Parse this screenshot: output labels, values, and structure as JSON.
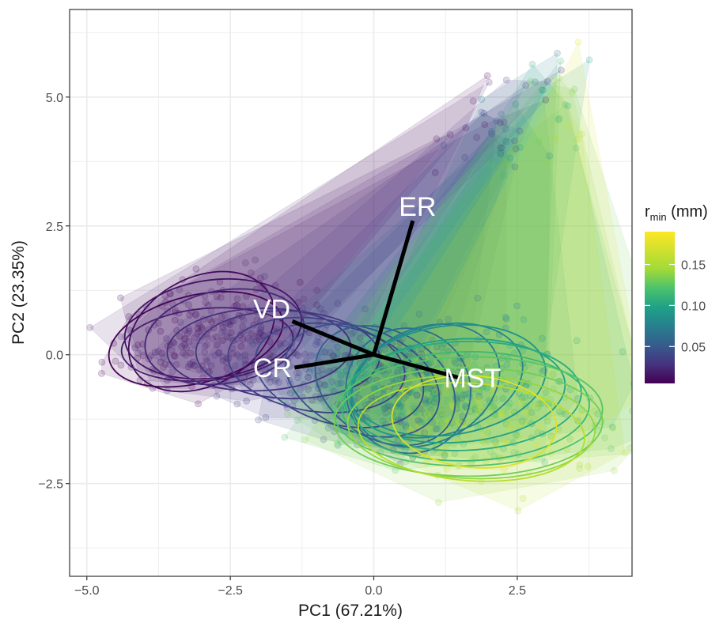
{
  "chart_data": {
    "type": "scatter",
    "title": "",
    "xlabel": "PC1 (67.21%)",
    "ylabel": "PC2 (23.35%)",
    "xlim": [
      -5.3,
      4.5
    ],
    "ylim": [
      -4.3,
      6.7
    ],
    "x_ticks": [
      -5.0,
      -2.5,
      0.0,
      2.5
    ],
    "x_tick_labels": [
      "−5.0",
      "−2.5",
      "0.0",
      "2.5"
    ],
    "y_ticks": [
      -2.5,
      0.0,
      2.5,
      5.0
    ],
    "y_tick_labels": [
      "−2.5",
      "0.0",
      "2.5",
      "5.0"
    ],
    "grid": true,
    "background": "#ffffff",
    "grid_color": "#ebebeb",
    "loadings": [
      {
        "label": "ER",
        "x": 0.68,
        "y": 2.6
      },
      {
        "label": "VD",
        "x": -1.42,
        "y": 0.65
      },
      {
        "label": "CR",
        "x": -1.38,
        "y": -0.25
      },
      {
        "label": "MST",
        "x": 1.5,
        "y": -0.45
      }
    ],
    "groups": [
      {
        "rmin": 0.005,
        "cx": -3.1,
        "cy": 0.3,
        "rx": 1.55,
        "ry": 0.85,
        "rot": 14
      },
      {
        "rmin": 0.01,
        "cx": -3.0,
        "cy": 0.45,
        "rx": 1.35,
        "ry": 1.05,
        "rot": 28
      },
      {
        "rmin": 0.015,
        "cx": -2.8,
        "cy": 0.5,
        "rx": 1.55,
        "ry": 0.95,
        "rot": 8
      },
      {
        "rmin": 0.02,
        "cx": -2.9,
        "cy": 0.2,
        "rx": 1.5,
        "ry": 0.7,
        "rot": 5
      },
      {
        "rmin": 0.025,
        "cx": -2.6,
        "cy": 0.35,
        "rx": 1.4,
        "ry": 0.9,
        "rot": 10
      },
      {
        "rmin": 0.03,
        "cx": -2.0,
        "cy": 0.1,
        "rx": 1.6,
        "ry": 0.8,
        "rot": 2
      },
      {
        "rmin": 0.035,
        "cx": -1.5,
        "cy": 0.0,
        "rx": 1.6,
        "ry": 0.85,
        "rot": -2
      },
      {
        "rmin": 0.04,
        "cx": -1.0,
        "cy": -0.2,
        "rx": 1.55,
        "ry": 0.9,
        "rot": -8
      },
      {
        "rmin": 0.045,
        "cx": -0.6,
        "cy": -0.4,
        "rx": 1.5,
        "ry": 0.95,
        "rot": -15
      },
      {
        "rmin": 0.05,
        "cx": -0.2,
        "cy": -0.5,
        "rx": 1.4,
        "ry": 1.0,
        "rot": -22
      },
      {
        "rmin": 0.06,
        "cx": 0.2,
        "cy": -0.6,
        "rx": 1.3,
        "ry": 1.05,
        "rot": -30
      },
      {
        "rmin": 0.07,
        "cx": 0.6,
        "cy": -0.7,
        "rx": 1.1,
        "ry": 1.2,
        "rot": -50
      },
      {
        "rmin": 0.08,
        "cx": 0.9,
        "cy": -0.6,
        "rx": 1.0,
        "ry": 1.5,
        "rot": -65
      },
      {
        "rmin": 0.09,
        "cx": 1.1,
        "cy": -0.5,
        "rx": 0.95,
        "ry": 1.7,
        "rot": -75
      },
      {
        "rmin": 0.1,
        "cx": 1.3,
        "cy": -0.5,
        "rx": 0.95,
        "ry": 1.9,
        "rot": -82
      },
      {
        "rmin": 0.11,
        "cx": 1.45,
        "cy": -0.7,
        "rx": 0.9,
        "ry": 2.1,
        "rot": -86
      },
      {
        "rmin": 0.12,
        "cx": 1.55,
        "cy": -0.8,
        "rx": 0.95,
        "ry": 2.3,
        "rot": -88
      },
      {
        "rmin": 0.13,
        "cx": 1.6,
        "cy": -1.0,
        "rx": 0.95,
        "ry": 2.4,
        "rot": -89
      },
      {
        "rmin": 0.14,
        "cx": 1.65,
        "cy": -1.1,
        "rx": 0.95,
        "ry": 2.6,
        "rot": -89
      },
      {
        "rmin": 0.15,
        "cx": 1.65,
        "cy": -1.3,
        "rx": 0.95,
        "ry": 2.6,
        "rot": 90
      },
      {
        "rmin": 0.16,
        "cx": 1.7,
        "cy": -1.4,
        "rx": 0.9,
        "ry": 2.4,
        "rot": 88
      },
      {
        "rmin": 0.17,
        "cx": 1.7,
        "cy": -1.5,
        "rx": 0.85,
        "ry": 2.2,
        "rot": 86
      },
      {
        "rmin": 0.18,
        "cx": 1.75,
        "cy": -1.3,
        "rx": 0.8,
        "ry": 1.6,
        "rot": 85
      }
    ],
    "legend": {
      "title_main": "r",
      "title_sub": "min",
      "title_unit": " (mm)",
      "placement": "right",
      "range": [
        0.005,
        0.19
      ],
      "breaks": [
        0.05,
        0.1,
        0.15
      ],
      "break_labels": [
        "0.05",
        "0.10",
        "0.15"
      ],
      "colormap": "viridis"
    }
  }
}
